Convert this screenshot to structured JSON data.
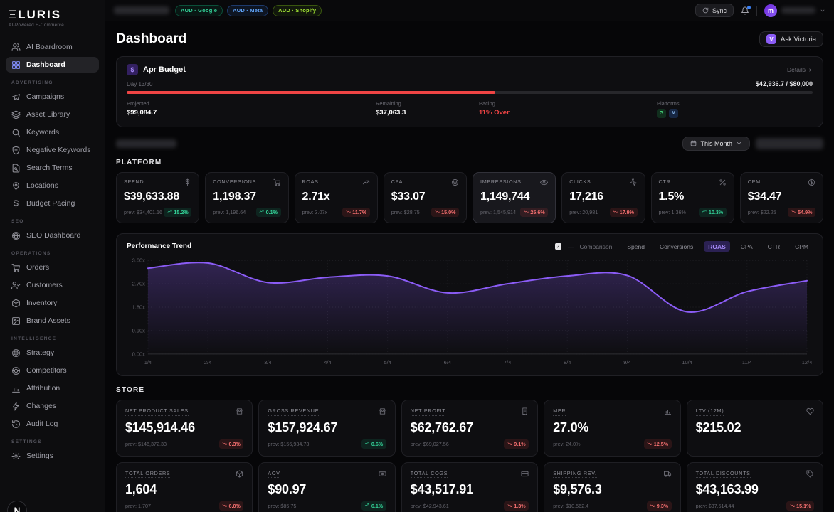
{
  "brand": {
    "logo_glyph": "Ξ",
    "logo_text": "LURIS",
    "tagline": "AI-Powered E-Commerce"
  },
  "topbar": {
    "sync_label": "Sync",
    "avatar_letter": "m",
    "badges": [
      {
        "label": "AUD · Google",
        "color": "#34d399",
        "bg": "rgba(16,185,129,0.08)",
        "border": "rgba(16,185,129,0.35)"
      },
      {
        "label": "AUD · Meta",
        "color": "#60a5fa",
        "bg": "rgba(59,130,246,0.10)",
        "border": "rgba(59,130,246,0.35)"
      },
      {
        "label": "AUD · Shopify",
        "color": "#a3e635",
        "bg": "rgba(132,204,22,0.08)",
        "border": "rgba(132,204,22,0.35)"
      }
    ]
  },
  "sidebar": {
    "primary": [
      {
        "label": "AI Boardroom",
        "icon": "users",
        "active": false
      },
      {
        "label": "Dashboard",
        "icon": "grid",
        "active": true
      }
    ],
    "sections": [
      {
        "title": "ADVERTISING",
        "items": [
          {
            "label": "Campaigns",
            "icon": "megaphone"
          },
          {
            "label": "Asset Library",
            "icon": "layers"
          },
          {
            "label": "Keywords",
            "icon": "search"
          },
          {
            "label": "Negative Keywords",
            "icon": "shield-minus"
          },
          {
            "label": "Search Terms",
            "icon": "file-search"
          },
          {
            "label": "Locations",
            "icon": "map-pin"
          },
          {
            "label": "Budget Pacing",
            "icon": "dollar"
          }
        ]
      },
      {
        "title": "SEO",
        "items": [
          {
            "label": "SEO Dashboard",
            "icon": "globe"
          }
        ]
      },
      {
        "title": "OPERATIONS",
        "items": [
          {
            "label": "Orders",
            "icon": "cart"
          },
          {
            "label": "Customers",
            "icon": "user-check"
          },
          {
            "label": "Inventory",
            "icon": "package"
          },
          {
            "label": "Brand Assets",
            "icon": "image"
          }
        ]
      },
      {
        "title": "INTELLIGENCE",
        "items": [
          {
            "label": "Strategy",
            "icon": "target"
          },
          {
            "label": "Competitors",
            "icon": "radar"
          },
          {
            "label": "Attribution",
            "icon": "bar-chart"
          },
          {
            "label": "Changes",
            "icon": "zap"
          },
          {
            "label": "Audit Log",
            "icon": "history"
          }
        ]
      },
      {
        "title": "SETTINGS",
        "items": [
          {
            "label": "Settings",
            "icon": "gear"
          }
        ]
      }
    ]
  },
  "header": {
    "title": "Dashboard",
    "ask_button": "Ask Victoria",
    "ask_icon_letter": "V"
  },
  "budget": {
    "title": "Apr Budget",
    "details_label": "Details",
    "day_label": "Day 13/30",
    "spend_vs_total": "$42,936.7 / $80,000",
    "progress_pct": 53.7,
    "progress_color": "#ef4444",
    "projected_label": "Projected",
    "projected": "$99,084.7",
    "remaining_label": "Remaining",
    "remaining": "$37,063.3",
    "pacing_label": "Pacing",
    "pacing": "11% Over",
    "pacing_color": "#ef4444",
    "platforms_label": "Platforms",
    "platform_badges": [
      {
        "letter": "G",
        "color": "#4ade80",
        "bg": "rgba(34,197,94,0.18)"
      },
      {
        "letter": "M",
        "color": "#93c5fd",
        "bg": "rgba(59,130,246,0.22)"
      }
    ]
  },
  "filters": {
    "period_label": "This Month"
  },
  "platform_section": {
    "title": "PLATFORM",
    "cards": [
      {
        "label": "SPEND",
        "icon": "dollar",
        "value": "$39,633.88",
        "prev": "prev: $34,401.16",
        "delta": "15.2%",
        "trend": "up",
        "highlight": false
      },
      {
        "label": "CONVERSIONS",
        "icon": "cart",
        "value": "1,198.37",
        "prev": "prev: 1,196.64",
        "delta": "0.1%",
        "trend": "up",
        "highlight": false
      },
      {
        "label": "ROAS",
        "icon": "trending-up",
        "value": "2.71x",
        "prev": "prev: 3.07x",
        "delta": "11.7%",
        "trend": "down",
        "highlight": false
      },
      {
        "label": "CPA",
        "icon": "target",
        "value": "$33.07",
        "prev": "prev: $28.75",
        "delta": "15.0%",
        "trend": "down",
        "highlight": false
      },
      {
        "label": "IMPRESSIONS",
        "icon": "eye",
        "value": "1,149,744",
        "prev": "prev: 1,545,914",
        "delta": "25.6%",
        "trend": "down",
        "highlight": true
      },
      {
        "label": "CLICKS",
        "icon": "click",
        "value": "17,216",
        "prev": "prev: 20,981",
        "delta": "17.9%",
        "trend": "down",
        "highlight": false
      },
      {
        "label": "CTR",
        "icon": "percent",
        "value": "1.5%",
        "prev": "prev: 1.36%",
        "delta": "10.3%",
        "trend": "up",
        "highlight": false
      },
      {
        "label": "CPM",
        "icon": "circle-dollar",
        "value": "$34.47",
        "prev": "prev: $22.25",
        "delta": "54.9%",
        "trend": "down",
        "highlight": false
      }
    ]
  },
  "chart_data": {
    "type": "area",
    "title": "Performance Trend",
    "comparison_label": "Comparison",
    "tabs": [
      "Spend",
      "Conversions",
      "ROAS",
      "CPA",
      "CTR",
      "CPM"
    ],
    "active_tab": "ROAS",
    "x": [
      "1/4",
      "2/4",
      "3/4",
      "4/4",
      "5/4",
      "6/4",
      "7/4",
      "8/4",
      "9/4",
      "10/4",
      "11/4",
      "12/4"
    ],
    "values": [
      3.3,
      3.5,
      2.75,
      2.95,
      3.0,
      2.35,
      2.7,
      3.0,
      3.02,
      1.62,
      2.4,
      2.82
    ],
    "y_ticks": [
      "0.00x",
      "0.90x",
      "1.80x",
      "2.70x",
      "3.60x"
    ],
    "ylim": [
      0,
      3.6
    ],
    "line_color": "#8b5cf6",
    "grid": true,
    "legend_position": "top-right"
  },
  "store_section": {
    "title": "STORE",
    "cards": [
      {
        "label": "NET PRODUCT SALES",
        "icon": "store",
        "value": "$145,914.46",
        "prev": "prev: $146,372.33",
        "delta": "0.3%",
        "trend": "down",
        "highlight": false
      },
      {
        "label": "GROSS REVENUE",
        "icon": "store",
        "value": "$157,924.67",
        "prev": "prev: $156,934.73",
        "delta": "0.6%",
        "trend": "up",
        "highlight": false
      },
      {
        "label": "NET PROFIT",
        "icon": "receipt",
        "value": "$62,762.67",
        "prev": "prev: $69,027.56",
        "delta": "9.1%",
        "trend": "down",
        "highlight": false
      },
      {
        "label": "MER",
        "icon": "bar-chart",
        "value": "27.0%",
        "prev": "prev: 24.0%",
        "delta": "12.5%",
        "trend": "down",
        "highlight": false
      },
      {
        "label": "LTV (12M)",
        "icon": "heart",
        "value": "$215.02",
        "prev": "",
        "delta": "",
        "trend": "",
        "highlight": false
      },
      {
        "label": "TOTAL ORDERS",
        "icon": "package",
        "value": "1,604",
        "prev": "prev: 1,707",
        "delta": "6.0%",
        "trend": "down",
        "highlight": false
      },
      {
        "label": "AOV",
        "icon": "banknote",
        "value": "$90.97",
        "prev": "prev: $85.75",
        "delta": "6.1%",
        "trend": "up",
        "highlight": false
      },
      {
        "label": "TOTAL COGS",
        "icon": "credit-card",
        "value": "$43,517.91",
        "prev": "prev: $42,943.61",
        "delta": "1.3%",
        "trend": "down",
        "highlight": false
      },
      {
        "label": "SHIPPING REV.",
        "icon": "truck",
        "value": "$9,576.3",
        "prev": "prev: $10,562.4",
        "delta": "9.3%",
        "trend": "down",
        "highlight": false
      },
      {
        "label": "TOTAL DISCOUNTS",
        "icon": "tag",
        "value": "$43,163.99",
        "prev": "prev: $37,514.44",
        "delta": "15.1%",
        "trend": "down",
        "highlight": false
      }
    ]
  },
  "dev_badge": "N"
}
